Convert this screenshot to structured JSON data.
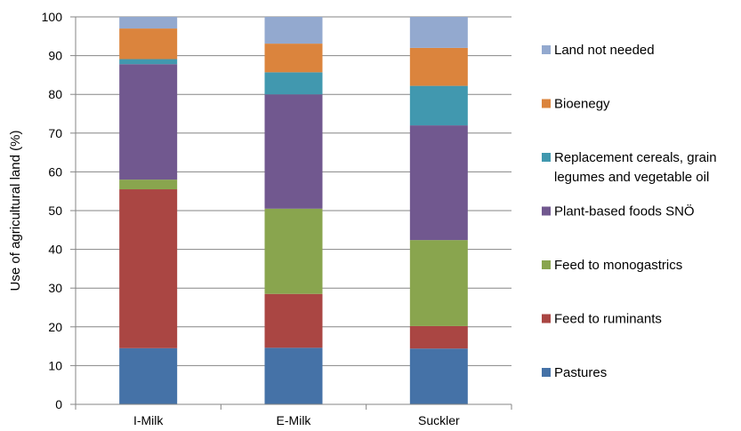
{
  "chart_data": {
    "type": "bar",
    "stacked": true,
    "title": "",
    "xlabel": "",
    "ylabel": "Use of agricultural land (%)",
    "ylim": [
      0,
      100
    ],
    "ytick_step": 10,
    "grid": "horizontal",
    "legend_position": "right",
    "categories": [
      "I-Milk",
      "E-Milk",
      "Suckler"
    ],
    "series": [
      {
        "name": "Pastures",
        "color": "#4572a7",
        "values": [
          14.5,
          14.6,
          14.4
        ]
      },
      {
        "name": "Feed to ruminants",
        "color": "#aa4643",
        "values": [
          41.0,
          13.9,
          5.8
        ]
      },
      {
        "name": "Feed to monogastrics",
        "color": "#89a54e",
        "values": [
          2.5,
          22.0,
          22.2
        ]
      },
      {
        "name": "Plant-based foods SNÖ",
        "color": "#71588f",
        "values": [
          29.8,
          29.5,
          29.6
        ]
      },
      {
        "name": "Replacement cereals, grain legumes and vegetable oil",
        "color": "#4198af",
        "values": [
          1.3,
          5.7,
          10.2
        ]
      },
      {
        "name": "Bioenegy",
        "color": "#db843d",
        "values": [
          7.9,
          7.4,
          9.8
        ]
      },
      {
        "name": "Land not needed",
        "color": "#93a9cf",
        "values": [
          3.0,
          6.9,
          8.0
        ]
      }
    ]
  }
}
